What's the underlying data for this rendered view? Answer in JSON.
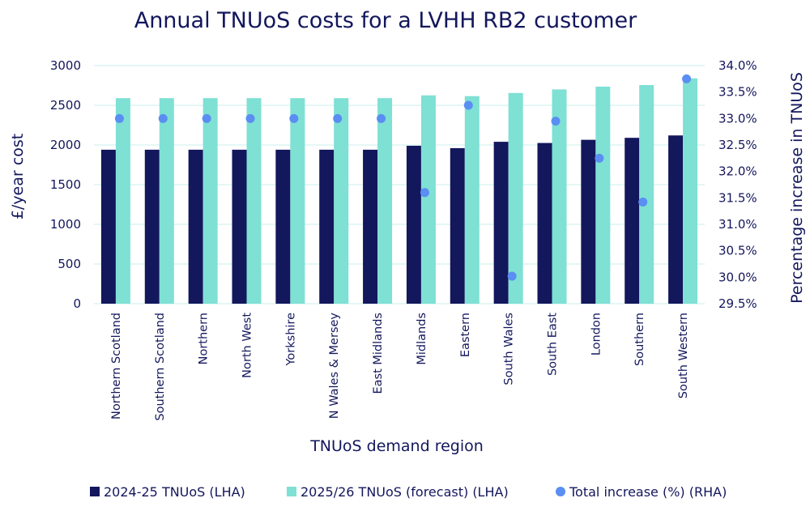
{
  "chart_data": {
    "type": "bar",
    "title": "Annual TNUoS costs for a LVHH RB2 customer",
    "xlabel": "TNUoS demand region",
    "ylabel": "£/year cost",
    "y2label": "Percentage increase in TNUoS",
    "ylim": [
      0,
      3000
    ],
    "yticks": [
      "0",
      "500",
      "1000",
      "1500",
      "2000",
      "2500",
      "3000"
    ],
    "y2lim": [
      29.5,
      34.0
    ],
    "y2ticks": [
      "29.5%",
      "30.0%",
      "30.5%",
      "31.0%",
      "31.5%",
      "32.0%",
      "32.5%",
      "33.0%",
      "33.5%",
      "34.0%"
    ],
    "grid": true,
    "legend_position": "bottom",
    "categories": [
      "Northern Scotland",
      "Southern Scotland",
      "Northern",
      "North West",
      "Yorkshire",
      "N Wales & Mersey",
      "East Midlands",
      "Midlands",
      "Eastern",
      "South Wales",
      "South East",
      "London",
      "Southern",
      "South Western"
    ],
    "series": [
      {
        "name": "2024-25 TNUoS (LHA)",
        "type": "bar",
        "axis": "left",
        "color": "#13175c",
        "values": [
          1940,
          1940,
          1940,
          1940,
          1940,
          1940,
          1940,
          1990,
          1960,
          2040,
          2025,
          2065,
          2090,
          2120
        ]
      },
      {
        "name": "2025/26 TNUoS (forecast) (LHA)",
        "type": "bar",
        "axis": "left",
        "color": "#7fe0d4",
        "values": [
          2590,
          2590,
          2590,
          2590,
          2590,
          2590,
          2590,
          2625,
          2615,
          2655,
          2700,
          2735,
          2755,
          2840
        ]
      },
      {
        "name": "Total increase (%) (RHA)",
        "type": "scatter",
        "axis": "right",
        "color": "#5a8ef2",
        "values": [
          33.0,
          33.0,
          33.0,
          33.0,
          33.0,
          33.0,
          33.0,
          31.6,
          33.25,
          30.02,
          32.95,
          32.25,
          31.42,
          33.75
        ]
      }
    ]
  }
}
